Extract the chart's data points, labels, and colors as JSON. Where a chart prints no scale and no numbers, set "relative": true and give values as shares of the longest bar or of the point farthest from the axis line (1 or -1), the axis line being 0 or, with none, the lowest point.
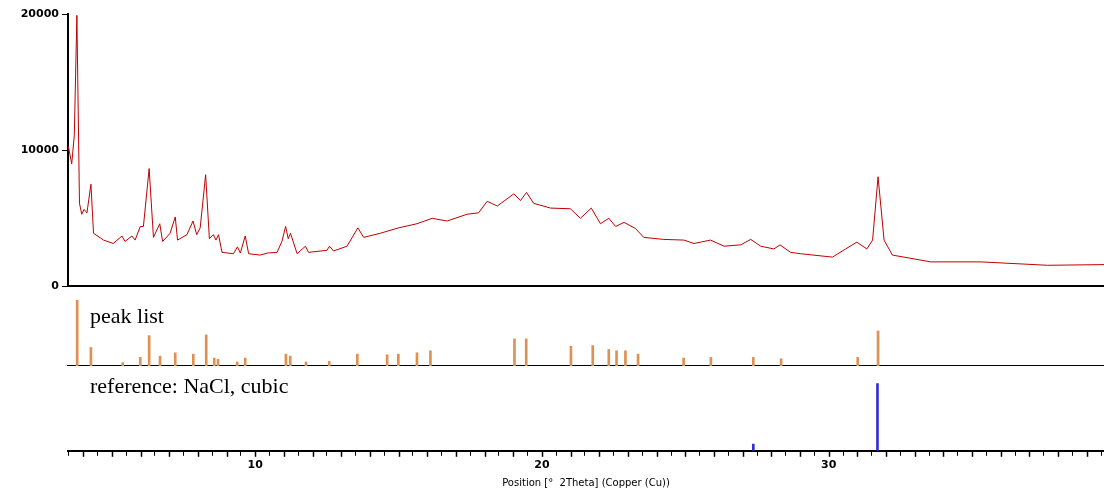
{
  "chart_data": [
    {
      "type": "line",
      "xlim": [
        3.47,
        39.6
      ],
      "ylim": [
        0,
        20000
      ],
      "yticks": [
        0,
        10000,
        20000
      ],
      "tick_labels": "y",
      "grid": false,
      "marker": "none",
      "x": [
        3.48,
        3.6,
        3.69,
        3.78,
        3.87,
        3.95,
        4.03,
        4.13,
        4.27,
        4.36,
        4.71,
        5.05,
        5.35,
        5.46,
        5.7,
        5.81,
        5.99,
        6.1,
        6.3,
        6.45,
        6.67,
        6.77,
        7.03,
        7.21,
        7.29,
        7.62,
        7.83,
        7.96,
        8.08,
        8.27,
        8.4,
        8.54,
        8.63,
        8.72,
        8.84,
        9.24,
        9.38,
        9.48,
        9.65,
        9.77,
        10.17,
        10.43,
        10.76,
        10.93,
        11.06,
        11.15,
        11.23,
        11.46,
        11.75,
        11.86,
        12.5,
        12.59,
        12.73,
        13.2,
        13.58,
        13.78,
        14.36,
        15.0,
        15.64,
        16.17,
        16.69,
        17.39,
        17.79,
        18.09,
        18.44,
        19.02,
        19.25,
        19.46,
        19.71,
        20.3,
        20.99,
        21.34,
        21.72,
        22.04,
        22.33,
        22.57,
        22.86,
        23.26,
        23.55,
        24.25,
        24.95,
        25.3,
        25.88,
        26.35,
        26.93,
        27.28,
        27.63,
        28.09,
        28.3,
        28.67,
        29.02,
        30.13,
        30.59,
        30.98,
        31.33,
        31.53,
        31.72,
        31.93,
        32.22,
        33.56,
        35.31,
        37.63,
        39.6
      ],
      "series": [
        {
          "color": "#c00000",
          "values": [
            10300,
            9000,
            11100,
            19900,
            6100,
            5300,
            5650,
            5400,
            7500,
            3900,
            3400,
            3150,
            3700,
            3300,
            3700,
            3400,
            4400,
            4400,
            8650,
            3600,
            4600,
            3300,
            3900,
            5100,
            3400,
            3800,
            4800,
            3800,
            4300,
            8200,
            3500,
            3800,
            3400,
            3800,
            2500,
            2400,
            2900,
            2450,
            3700,
            2400,
            2300,
            2450,
            2500,
            3300,
            4400,
            3500,
            3900,
            2400,
            2950,
            2500,
            2650,
            2950,
            2600,
            2950,
            4300,
            3600,
            3900,
            4300,
            4600,
            5000,
            4800,
            5300,
            5400,
            6250,
            5900,
            6800,
            6300,
            6900,
            6100,
            5750,
            5700,
            5000,
            5750,
            4600,
            5000,
            4400,
            4700,
            4250,
            3600,
            3450,
            3400,
            3150,
            3400,
            2950,
            3050,
            3450,
            2950,
            2750,
            3050,
            2500,
            2400,
            2150,
            2750,
            3250,
            2750,
            3400,
            8050,
            3400,
            2300,
            1800,
            1800,
            1550,
            1600
          ]
        }
      ]
    },
    {
      "type": "bar",
      "title": "peak list",
      "relative": true,
      "xlim": [
        3.47,
        39.6
      ],
      "tick_labels": false,
      "x": [
        3.79,
        4.27,
        5.38,
        5.99,
        6.3,
        6.68,
        7.21,
        7.84,
        8.29,
        8.57,
        8.7,
        9.37,
        9.65,
        11.07,
        11.22,
        11.77,
        12.58,
        13.56,
        14.6,
        14.99,
        15.64,
        16.11,
        19.04,
        19.45,
        21.01,
        21.77,
        22.33,
        22.6,
        22.91,
        23.35,
        24.94,
        25.89,
        27.37,
        28.34,
        31.01,
        31.72
      ],
      "series": [
        {
          "color": "#e09050",
          "values": [
            1,
            0.28,
            0.05,
            0.13,
            0.46,
            0.15,
            0.2,
            0.18,
            0.47,
            0.12,
            0.1,
            0.06,
            0.12,
            0.18,
            0.15,
            0.06,
            0.07,
            0.18,
            0.17,
            0.18,
            0.2,
            0.23,
            0.41,
            0.41,
            0.3,
            0.31,
            0.25,
            0.23,
            0.23,
            0.18,
            0.12,
            0.13,
            0.13,
            0.11,
            0.13,
            0.53
          ]
        }
      ]
    },
    {
      "type": "bar",
      "title": "reference: NaCl, cubic",
      "relative": true,
      "xlim": [
        3.47,
        39.6
      ],
      "xlabel": "Position [°  2Theta] (Copper (Cu))",
      "tick_labels": "x",
      "xticks": [
        {
          "value": 4,
          "label": null
        },
        {
          "value": 5,
          "label": null
        },
        {
          "value": 6,
          "label": null
        },
        {
          "value": 7,
          "label": null
        },
        {
          "value": 8,
          "label": null
        },
        {
          "value": 9,
          "label": null
        },
        10,
        {
          "value": 11,
          "label": null
        },
        {
          "value": 12,
          "label": null
        },
        {
          "value": 13,
          "label": null
        },
        {
          "value": 14,
          "label": null
        },
        {
          "value": 15,
          "label": null
        },
        {
          "value": 16,
          "label": null
        },
        {
          "value": 17,
          "label": null
        },
        {
          "value": 18,
          "label": null
        },
        {
          "value": 19,
          "label": null
        },
        20,
        {
          "value": 21,
          "label": null
        },
        {
          "value": 22,
          "label": null
        },
        {
          "value": 23,
          "label": null
        },
        {
          "value": 24,
          "label": null
        },
        {
          "value": 25,
          "label": null
        },
        {
          "value": 26,
          "label": null
        },
        {
          "value": 27,
          "label": null
        },
        {
          "value": 28,
          "label": null
        },
        {
          "value": 29,
          "label": null
        },
        30,
        {
          "value": 31,
          "label": null
        },
        {
          "value": 32,
          "label": null
        },
        {
          "value": 33,
          "label": null
        },
        {
          "value": 34,
          "label": null
        },
        {
          "value": 35,
          "label": null
        },
        {
          "value": 36,
          "label": null
        },
        {
          "value": 37,
          "label": null
        },
        {
          "value": 38,
          "label": null
        },
        {
          "value": 39,
          "label": null
        }
      ],
      "x": [
        27.37,
        31.7
      ],
      "series": [
        {
          "color": "#3030d0",
          "values": [
            0.1,
            1
          ]
        }
      ]
    }
  ]
}
